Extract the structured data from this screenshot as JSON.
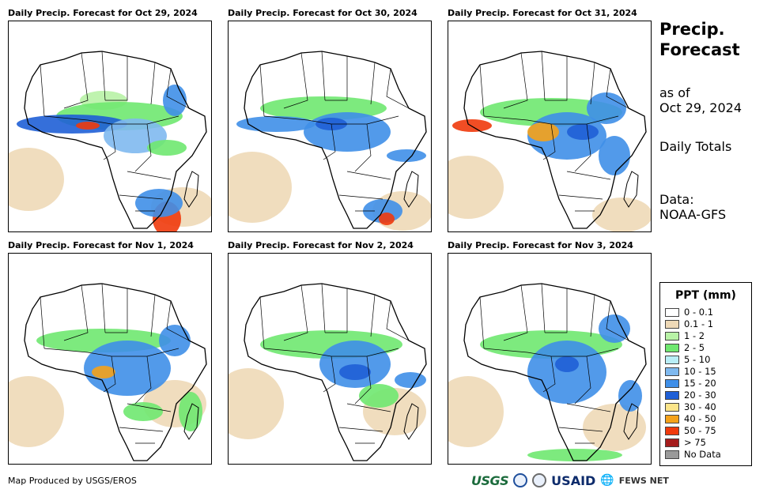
{
  "panels": [
    {
      "title": "Daily Precip. Forecast for Oct 29, 2024"
    },
    {
      "title": "Daily Precip. Forecast for Oct 30, 2024"
    },
    {
      "title": "Daily Precip. Forecast for Oct 31, 2024"
    },
    {
      "title": "Daily Precip. Forecast for Nov 1, 2024"
    },
    {
      "title": "Daily Precip. Forecast for Nov 2, 2024"
    },
    {
      "title": "Daily Precip. Forecast for Nov 3, 2024"
    }
  ],
  "side": {
    "title_line1": "Precip.",
    "title_line2": "Forecast",
    "asof_line1": "as of",
    "asof_line2": "Oct 29, 2024",
    "daily": "Daily Totals",
    "data_line1": "Data:",
    "data_line2": "NOAA-GFS"
  },
  "legend": {
    "title": "PPT (mm)",
    "items": [
      {
        "label": "0 - 0.1",
        "color": "#ffffff"
      },
      {
        "label": "0.1 - 1",
        "color": "#eed9b7"
      },
      {
        "label": "1 - 2",
        "color": "#b8f2a6"
      },
      {
        "label": "2 - 5",
        "color": "#6fe870"
      },
      {
        "label": "5 - 10",
        "color": "#b9eef7"
      },
      {
        "label": "10 - 15",
        "color": "#7fb9ef"
      },
      {
        "label": "15 - 20",
        "color": "#3f8fe8"
      },
      {
        "label": "20 - 30",
        "color": "#1f5fd6"
      },
      {
        "label": "30 - 40",
        "color": "#fbe58a"
      },
      {
        "label": "40 - 50",
        "color": "#f5a21a"
      },
      {
        "label": "50 - 75",
        "color": "#f03a0c"
      },
      {
        "label": "> 75",
        "color": "#a51c1c"
      },
      {
        "label": "No Data",
        "color": "#9a9a9a"
      }
    ]
  },
  "footer": {
    "credit": "Map Produced by USGS/EROS",
    "logo_usgs": "USGS",
    "logo_usaid": "USAID",
    "logo_fews": "FEWS NET"
  }
}
